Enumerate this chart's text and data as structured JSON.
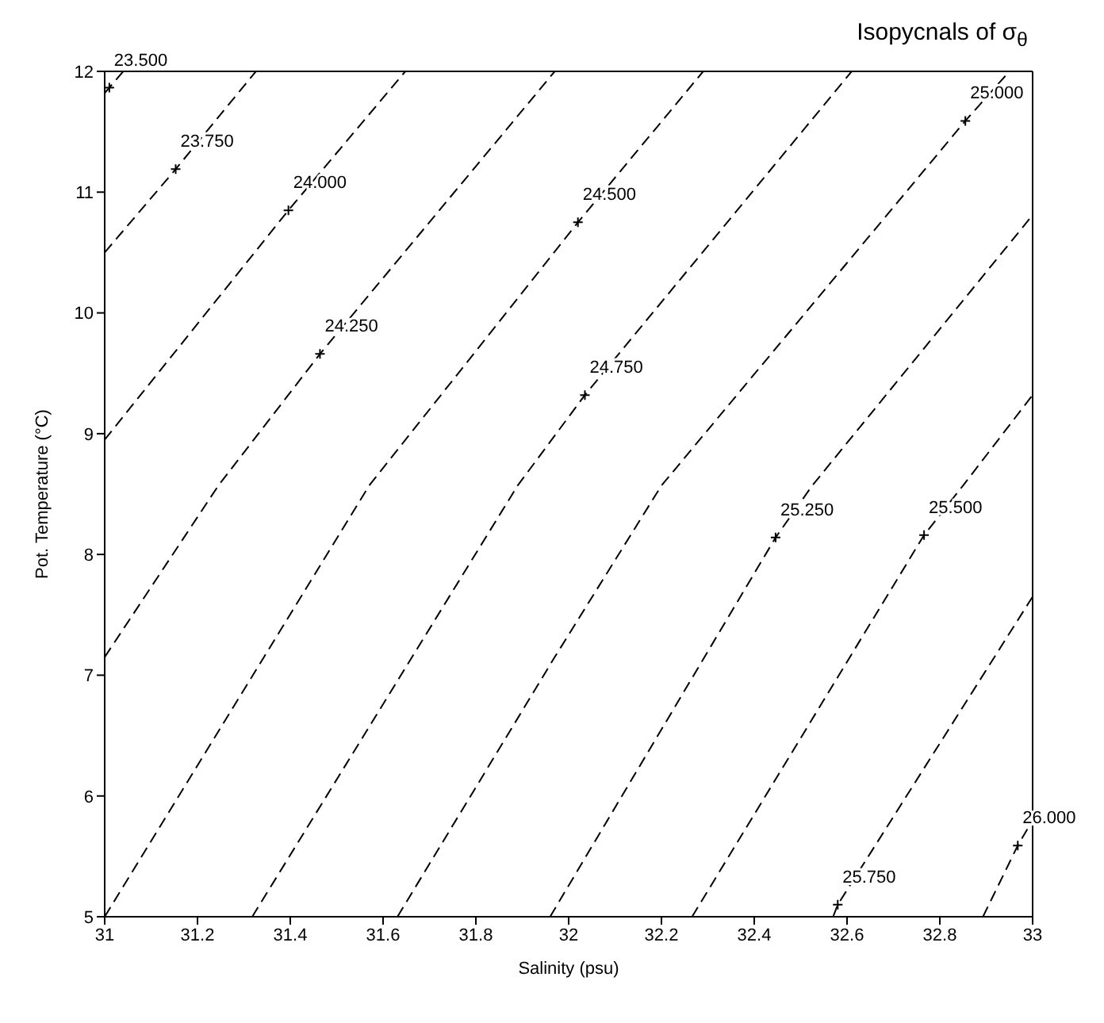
{
  "chart_data": {
    "type": "line",
    "title": "Isopycnals of σ$_{θ}$",
    "xlabel": "Salinity (psu)",
    "ylabel": "Pot. Temperature (°C)",
    "xlim": [
      31,
      33
    ],
    "xticks": [
      31,
      31.2,
      31.4,
      31.6,
      31.8,
      32,
      32.2,
      32.4,
      32.6,
      32.8,
      33
    ],
    "ylim": [
      5,
      12
    ],
    "yticks": [
      5,
      6,
      7,
      8,
      9,
      10,
      11,
      12
    ],
    "grid": false,
    "legend": false,
    "line_style": "dashed",
    "series": [
      {
        "color": "#000000",
        "x": [
          31,
          31.04
        ],
        "values": [
          11.82,
          12
        ]
      },
      {
        "color": "#000000",
        "x": [
          31,
          31.153,
          31.326
        ],
        "values": [
          10.5,
          11.19,
          12
        ]
      },
      {
        "color": "#000000",
        "x": [
          31,
          31.396,
          31.648
        ],
        "values": [
          8.95,
          10.85,
          12
        ]
      },
      {
        "color": "#000000",
        "x": [
          31,
          31.245,
          31.464,
          31.97
        ],
        "values": [
          7.15,
          8.57,
          9.66,
          12
        ]
      },
      {
        "color": "#000000",
        "x": [
          31,
          31.57,
          32.02,
          32.29
        ],
        "values": [
          5,
          8.57,
          10.75,
          12
        ]
      },
      {
        "color": "#000000",
        "x": [
          31.318,
          31.89,
          32.035,
          32.61
        ],
        "values": [
          5,
          8.57,
          9.32,
          12
        ]
      },
      {
        "color": "#000000",
        "x": [
          31.631,
          31.97,
          32.2,
          32.855,
          32.95
        ],
        "values": [
          5,
          7.15,
          8.57,
          11.59,
          12
        ]
      },
      {
        "color": "#000000",
        "x": [
          31.96,
          32.446,
          32.525,
          33
        ],
        "values": [
          5,
          8.14,
          8.57,
          10.81
        ]
      },
      {
        "color": "#000000",
        "x": [
          32.266,
          32.766,
          32.85,
          33
        ],
        "values": [
          5,
          8.16,
          8.57,
          9.32
        ]
      },
      {
        "color": "#000000",
        "x": [
          32.57,
          32.58,
          33
        ],
        "values": [
          5,
          5.1,
          7.65
        ]
      },
      {
        "color": "#000000",
        "x": [
          32.893,
          32.968,
          33
        ],
        "values": [
          5,
          5.59,
          5.8
        ]
      }
    ],
    "annotations": [
      {
        "text": "23.500",
        "x": 31.01,
        "y": 11.865
      },
      {
        "text": "23.750",
        "x": 31.153,
        "y": 11.19
      },
      {
        "text": "24.000",
        "x": 31.396,
        "y": 10.85
      },
      {
        "text": "24.250",
        "x": 31.464,
        "y": 9.66
      },
      {
        "text": "24.500",
        "x": 32.02,
        "y": 10.75
      },
      {
        "text": "24.750",
        "x": 32.035,
        "y": 9.32
      },
      {
        "text": "25.000",
        "x": 32.855,
        "y": 11.59
      },
      {
        "text": "25.250",
        "x": 32.446,
        "y": 8.14
      },
      {
        "text": "25.500",
        "x": 32.766,
        "y": 8.16
      },
      {
        "text": "25.750",
        "x": 32.58,
        "y": 5.1
      },
      {
        "text": "26.000",
        "x": 32.968,
        "y": 5.59
      }
    ]
  }
}
